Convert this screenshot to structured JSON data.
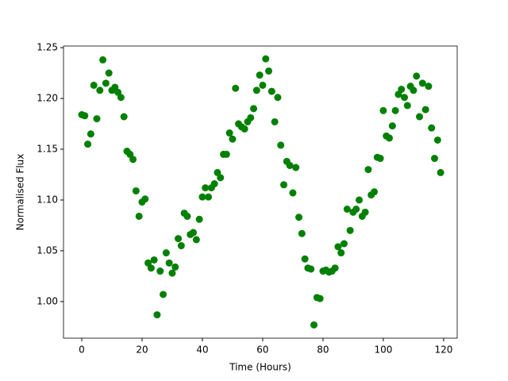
{
  "chart_data": {
    "type": "scatter",
    "xlabel": "Time (Hours)",
    "ylabel": "Normalised Flux",
    "color": "#008000",
    "xlim": [
      -6.05,
      124.5
    ],
    "ylim": [
      0.964,
      1.2516
    ],
    "xticks": [
      0,
      20,
      40,
      60,
      80,
      100,
      120
    ],
    "yticks": [
      {
        "value": 1.0,
        "label": "1.00"
      },
      {
        "value": 1.05,
        "label": "1.05"
      },
      {
        "value": 1.1,
        "label": "1.10"
      },
      {
        "value": 1.15,
        "label": "1.15"
      },
      {
        "value": 1.2,
        "label": "1.20"
      },
      {
        "value": 1.25,
        "label": "1.25"
      }
    ],
    "x": [
      0,
      1,
      2,
      3,
      4,
      5,
      6,
      7,
      8,
      9,
      10,
      11,
      12,
      13,
      14,
      15,
      16,
      17,
      18,
      19,
      20,
      21,
      22,
      23,
      24,
      25,
      26,
      27,
      28,
      29,
      30,
      31,
      32,
      33,
      34,
      35,
      36,
      37,
      38,
      39,
      40,
      41,
      42,
      43,
      44,
      45,
      46,
      47,
      48,
      49,
      50,
      51,
      52,
      53,
      54,
      55,
      56,
      57,
      58,
      59,
      60,
      61,
      62,
      63,
      64,
      65,
      66,
      67,
      68,
      69,
      70,
      71,
      72,
      73,
      74,
      75,
      76,
      77,
      78,
      79,
      80,
      81,
      82,
      83,
      84,
      85,
      86,
      87,
      88,
      89,
      90,
      91,
      92,
      93,
      94,
      95,
      96,
      97,
      98,
      99,
      100,
      101,
      102,
      103,
      104,
      105,
      106,
      107,
      108,
      109,
      110,
      111,
      112,
      113,
      114,
      115,
      116,
      117,
      118,
      119
    ],
    "values": [
      1.184,
      1.183,
      1.155,
      1.165,
      1.213,
      1.18,
      1.208,
      1.238,
      1.215,
      1.225,
      1.208,
      1.211,
      1.206,
      1.201,
      1.182,
      1.148,
      1.145,
      1.14,
      1.109,
      1.084,
      1.098,
      1.101,
      1.038,
      1.033,
      1.041,
      0.987,
      1.03,
      1.007,
      1.048,
      1.038,
      1.028,
      1.034,
      1.062,
      1.055,
      1.087,
      1.084,
      1.066,
      1.068,
      1.061,
      1.081,
      1.103,
      1.112,
      1.103,
      1.112,
      1.116,
      1.127,
      1.122,
      1.145,
      1.145,
      1.166,
      1.16,
      1.21,
      1.175,
      1.172,
      1.17,
      1.177,
      1.181,
      1.19,
      1.208,
      1.223,
      1.213,
      1.239,
      1.227,
      1.207,
      1.177,
      1.201,
      1.154,
      1.115,
      1.138,
      1.134,
      1.107,
      1.132,
      1.083,
      1.067,
      1.042,
      1.033,
      1.032,
      0.977,
      1.004,
      1.003,
      1.03,
      1.031,
      1.029,
      1.03,
      1.033,
      1.054,
      1.048,
      1.057,
      1.091,
      1.07,
      1.088,
      1.091,
      1.1,
      1.084,
      1.088,
      1.13,
      1.105,
      1.108,
      1.142,
      1.141,
      1.188,
      1.163,
      1.161,
      1.173,
      1.188,
      1.204,
      1.209,
      1.201,
      1.193,
      1.212,
      1.208,
      1.222,
      1.182,
      1.215,
      1.189,
      1.212,
      1.171,
      1.141,
      1.159,
      1.127
    ]
  }
}
